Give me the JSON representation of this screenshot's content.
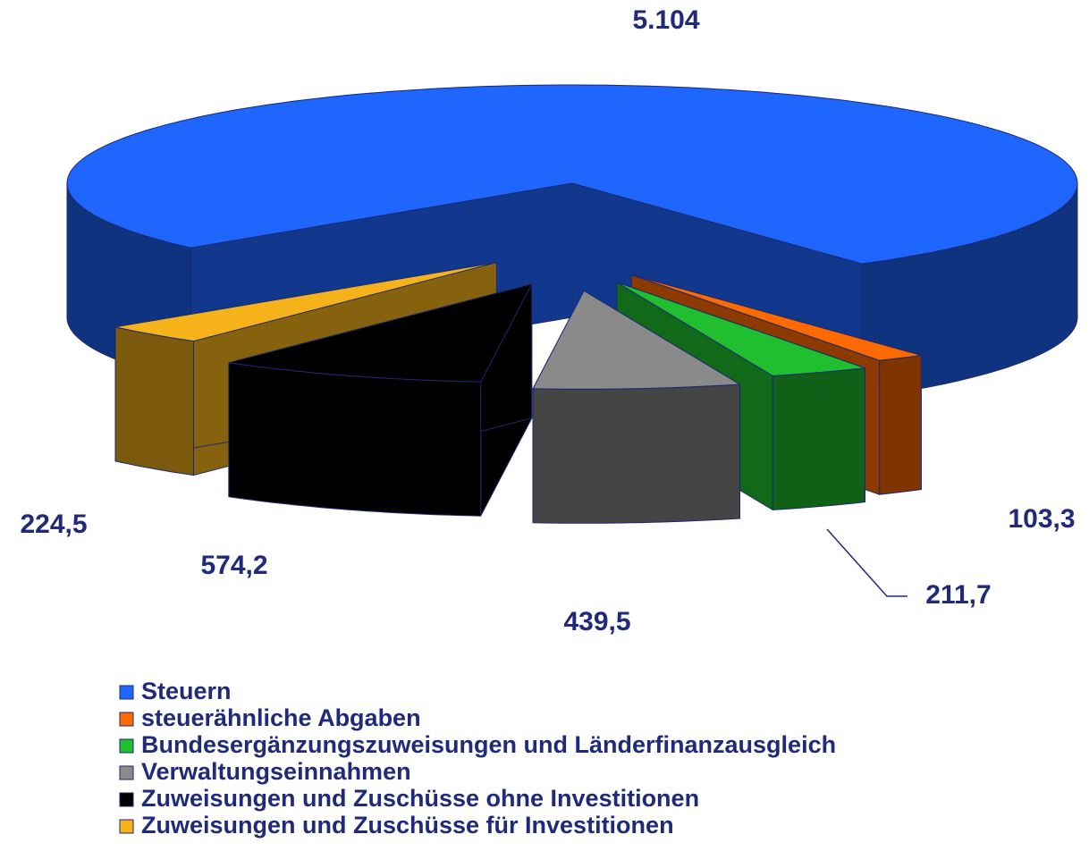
{
  "chart_data": {
    "type": "pie3d",
    "categories": [
      "Steuern",
      "steuerähnliche Abgaben",
      "Bundesergänzungszuweisungen und Länderfinanzausgleich",
      "Verwaltungseinnahmen",
      "Zuweisungen und Zuschüsse ohne Investitionen",
      "Zuweisungen und Zuschüsse für Investitionen"
    ],
    "values": [
      5104,
      103.3,
      211.7,
      439.5,
      574.2,
      224.5
    ],
    "value_labels": [
      "5.104",
      "103,3",
      "211,7",
      "439,5",
      "574,2",
      "224,5"
    ],
    "colors": [
      "#1f66ff",
      "#ff6a00",
      "#1fbf2f",
      "#8a8a8a",
      "#000000",
      "#f5b21a"
    ],
    "legend": "bottom"
  }
}
